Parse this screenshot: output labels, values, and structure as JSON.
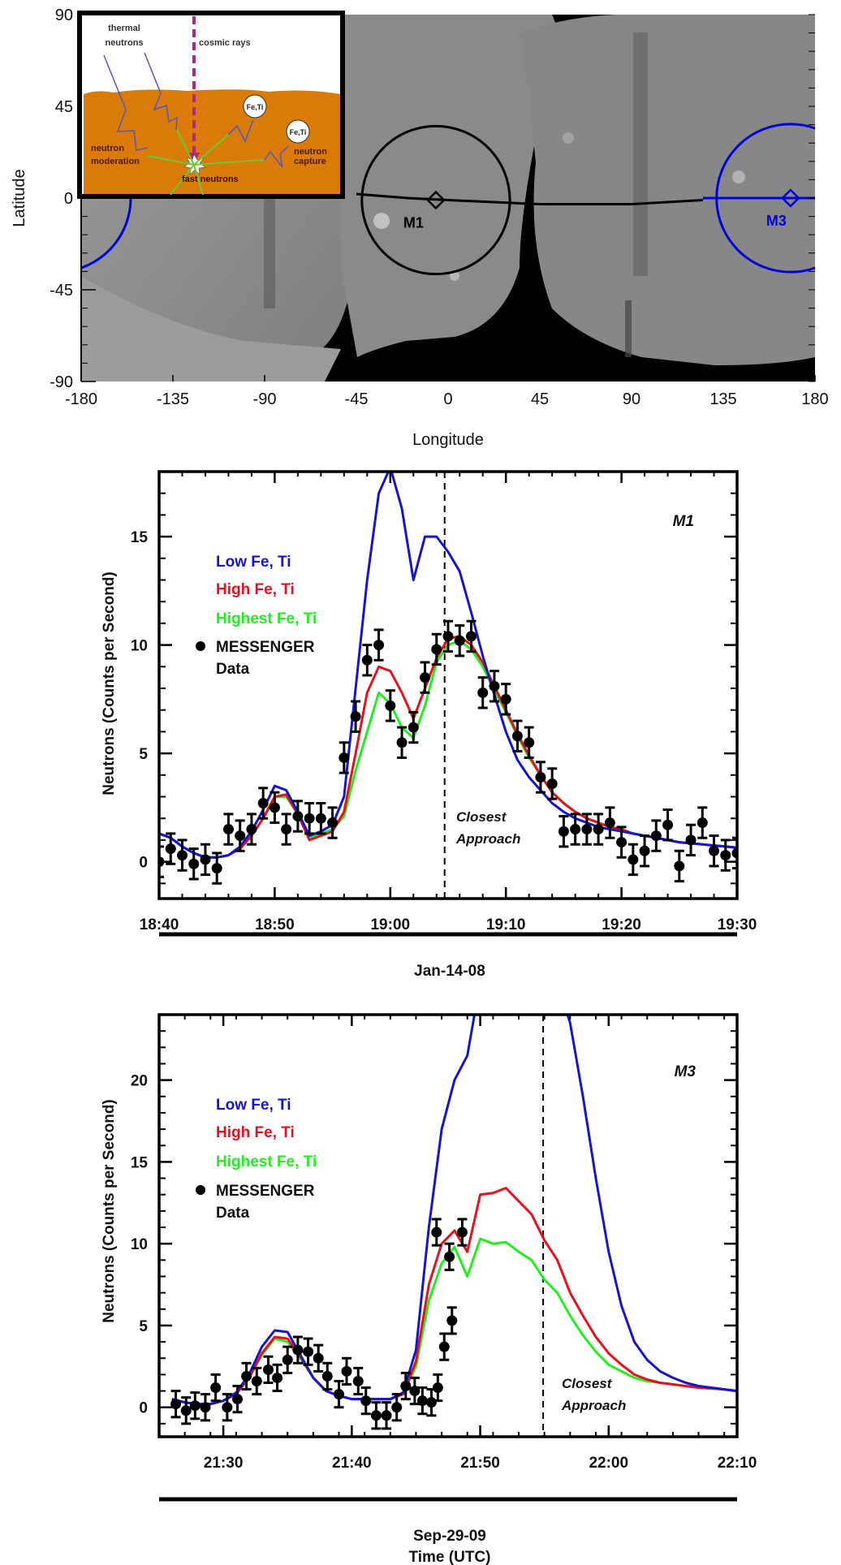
{
  "map": {
    "ylabel": "Latitude",
    "xlabel": "Longitude",
    "xticks": [
      "-180",
      "-135",
      "-90",
      "-45",
      "0",
      "45",
      "90",
      "135",
      "180"
    ],
    "xtick_values": [
      -180,
      -135,
      -90,
      -45,
      0,
      45,
      90,
      135,
      180
    ],
    "yticks": [
      "90",
      "45",
      "0",
      "-45",
      "-90"
    ],
    "ytick_values": [
      90,
      45,
      0,
      -45,
      -90
    ],
    "xlim": [
      -180,
      180
    ],
    "ylim": [
      -90,
      90
    ],
    "footprints": [
      {
        "label": "M1",
        "center_lon": -6,
        "center_lat": -1,
        "radius_deg": 33,
        "color": "#000000"
      },
      {
        "label": "M3",
        "center_lon": 168,
        "center_lat": 0,
        "radius_deg": 33,
        "color": "#0000dd"
      }
    ],
    "ground_track": [
      [
        -45,
        2
      ],
      [
        -20,
        0
      ],
      [
        0,
        -1
      ],
      [
        45,
        -3
      ],
      [
        90,
        -3
      ],
      [
        125,
        -1
      ]
    ],
    "m3_track": [
      [
        125,
        0
      ],
      [
        180,
        0
      ]
    ],
    "inset": {
      "labels": {
        "thermal": "thermal\nneutrons",
        "thermal_line1": "thermal",
        "thermal_line2": "neutrons",
        "cosmic": "cosmic rays",
        "moderation_line1": "neutron",
        "moderation_line2": "moderation",
        "capture_line1": "neutron",
        "capture_line2": "capture",
        "fast": "fast neutrons",
        "fe_ti": "Fe,Ti"
      },
      "colors": {
        "ground": "#d97b06",
        "cosmic": "#b5267f",
        "neutron_path": "#5555cc",
        "fast": "#66cc33"
      }
    }
  },
  "chart_data": [
    {
      "type": "line",
      "id": "M1",
      "title": "M1",
      "xlabel": "Jan-14-08",
      "ylabel": "Neutrons (Counts per Second)",
      "x_unit": "minutes after 18:40 UTC",
      "xlim": [
        0,
        50
      ],
      "ylim": [
        -1.7,
        18
      ],
      "xticks": [
        "18:40",
        "18:50",
        "19:00",
        "19:10",
        "19:20",
        "19:30"
      ],
      "xtick_values": [
        0,
        10,
        20,
        30,
        40,
        50
      ],
      "yticks": [
        "0",
        "5",
        "10",
        "15"
      ],
      "ytick_values": [
        0,
        5,
        10,
        15
      ],
      "closest_approach": {
        "x": 24.7,
        "label_line1": "Closest",
        "label_line2": "Approach"
      },
      "legend": [
        {
          "name": "Low Fe, Ti",
          "color": "#1515d0"
        },
        {
          "name": "High Fe, Ti",
          "color": "#e8101e"
        },
        {
          "name": "Highest Fe, Ti",
          "color": "#22ee22"
        },
        {
          "name": "MESSENGER",
          "name2": "Data",
          "color": "#000000",
          "marker": "dot"
        }
      ],
      "series": [
        {
          "name": "Highest Fe, Ti",
          "color": "#22ee22",
          "x": [
            0,
            1,
            2,
            3,
            4,
            5,
            6,
            7,
            8,
            9,
            10,
            11,
            12,
            13,
            14,
            15,
            16,
            17,
            18,
            19,
            20,
            21,
            22,
            23,
            24,
            25,
            26,
            27,
            28,
            29,
            30,
            31,
            32,
            33,
            34,
            35,
            36,
            37,
            38,
            39,
            40,
            41,
            42,
            43,
            44,
            45,
            46,
            47,
            48,
            49,
            50
          ],
          "y": [
            1.3,
            1.1,
            0.7,
            0.4,
            0.2,
            0.2,
            0.3,
            0.6,
            1.2,
            2.0,
            3.0,
            3.0,
            2.2,
            1.1,
            1.3,
            1.5,
            2.1,
            4.2,
            6.0,
            7.8,
            7.3,
            6.2,
            5.7,
            7.2,
            9.2,
            10.0,
            10.2,
            9.8,
            9.0,
            7.9,
            6.9,
            5.8,
            4.8,
            4.0,
            3.2,
            2.7,
            2.3,
            2.0,
            1.8,
            1.6,
            1.5,
            1.3,
            1.2,
            1.1,
            1.0,
            0.9,
            0.85,
            0.8,
            0.75,
            0.7,
            0.65
          ]
        },
        {
          "name": "High Fe, Ti",
          "color": "#e8101e",
          "x": [
            0,
            1,
            2,
            3,
            4,
            5,
            6,
            7,
            8,
            9,
            10,
            11,
            12,
            13,
            14,
            15,
            16,
            17,
            18,
            19,
            20,
            21,
            22,
            23,
            24,
            25,
            26,
            27,
            28,
            29,
            30,
            31,
            32,
            33,
            34,
            35,
            36,
            37,
            38,
            39,
            40,
            41,
            42,
            43,
            44,
            45,
            46,
            47,
            48,
            49,
            50
          ],
          "y": [
            1.3,
            1.1,
            0.7,
            0.4,
            0.2,
            0.2,
            0.3,
            0.6,
            1.2,
            2.0,
            3.0,
            3.1,
            2.2,
            1.0,
            1.2,
            1.4,
            2.3,
            5.0,
            7.8,
            9.0,
            8.8,
            7.8,
            6.6,
            8.0,
            9.4,
            10.3,
            10.4,
            10.0,
            9.2,
            8.1,
            7.0,
            5.9,
            4.9,
            4.0,
            3.2,
            2.7,
            2.3,
            2.0,
            1.8,
            1.6,
            1.5,
            1.3,
            1.2,
            1.1,
            1.0,
            0.9,
            0.85,
            0.8,
            0.75,
            0.7,
            0.65
          ]
        },
        {
          "name": "Low Fe, Ti",
          "color": "#1515d0",
          "x": [
            0,
            1,
            2,
            3,
            4,
            5,
            6,
            7,
            8,
            9,
            10,
            11,
            12,
            13,
            14,
            15,
            16,
            17,
            18,
            19,
            20,
            21,
            22,
            23,
            24,
            25,
            26,
            27,
            28,
            29,
            30,
            31,
            32,
            33,
            34,
            35,
            36,
            37,
            38,
            39,
            40,
            41,
            42,
            43,
            44,
            45,
            46,
            47,
            48,
            49,
            50
          ],
          "y": [
            1.3,
            1.1,
            0.7,
            0.4,
            0.2,
            0.2,
            0.3,
            0.7,
            1.4,
            2.4,
            3.5,
            3.3,
            2.3,
            1.2,
            1.4,
            1.7,
            3.0,
            8.0,
            13.0,
            17.0,
            18.2,
            16.3,
            13.0,
            15.0,
            15.0,
            14.3,
            13.4,
            11.5,
            9.5,
            7.7,
            6.0,
            4.7,
            3.9,
            3.3,
            2.7,
            2.3,
            2.0,
            1.8,
            1.6,
            1.5,
            1.4,
            1.3,
            1.2,
            1.1,
            1.0,
            0.9,
            0.85,
            0.8,
            0.75,
            0.7,
            0.65
          ]
        }
      ],
      "points": {
        "name": "MESSENGER Data",
        "x": [
          0,
          1,
          2,
          3,
          4,
          5,
          6,
          7,
          8,
          9,
          10,
          11,
          12,
          13,
          14,
          15,
          16,
          17,
          18,
          19,
          20,
          21,
          22,
          23,
          24,
          25,
          26,
          27,
          28,
          29,
          30,
          31,
          32,
          33,
          34,
          35,
          36,
          37,
          38,
          39,
          40,
          41,
          42,
          43,
          44,
          45,
          46,
          47,
          48,
          49,
          50
        ],
        "y": [
          0.0,
          0.6,
          0.3,
          -0.1,
          0.1,
          -0.3,
          1.5,
          1.2,
          1.5,
          2.7,
          2.5,
          1.5,
          2.1,
          2.0,
          2.0,
          1.8,
          4.8,
          6.7,
          9.3,
          10.0,
          7.2,
          5.5,
          6.2,
          8.5,
          9.8,
          10.4,
          10.2,
          10.4,
          7.8,
          8.1,
          7.5,
          5.8,
          5.5,
          3.9,
          3.6,
          1.4,
          1.5,
          1.5,
          1.5,
          1.8,
          0.9,
          0.1,
          0.5,
          1.2,
          1.7,
          -0.2,
          1.0,
          1.8,
          0.5,
          0.3,
          0.4
        ],
        "err": [
          0.7,
          0.7,
          0.7,
          0.7,
          0.7,
          0.7,
          0.7,
          0.7,
          0.7,
          0.7,
          0.7,
          0.7,
          0.7,
          0.7,
          0.7,
          0.7,
          0.7,
          0.7,
          0.7,
          0.7,
          0.7,
          0.7,
          0.7,
          0.7,
          0.7,
          0.7,
          0.7,
          0.7,
          0.7,
          0.7,
          0.7,
          0.7,
          0.7,
          0.7,
          0.7,
          0.7,
          0.7,
          0.7,
          0.7,
          0.7,
          0.7,
          0.7,
          0.7,
          0.7,
          0.7,
          0.7,
          0.7,
          0.7,
          0.7,
          0.7,
          0.7
        ]
      }
    },
    {
      "type": "line",
      "id": "M3",
      "title": "M3",
      "xlabel": "Sep-29-09",
      "xlabel2": "Time (UTC)",
      "ylabel": "Neutrons (Counts per Second)",
      "x_unit": "minutes after 21:25 UTC",
      "xlim": [
        0,
        45
      ],
      "ylim": [
        -1.8,
        24
      ],
      "xticks": [
        "21:30",
        "21:40",
        "21:50",
        "22:00",
        "22:10"
      ],
      "xtick_values": [
        5,
        15,
        25,
        35,
        45
      ],
      "yticks": [
        "0",
        "5",
        "10",
        "15",
        "20"
      ],
      "ytick_values": [
        0,
        5,
        10,
        15,
        20
      ],
      "closest_approach": {
        "x": 29.9,
        "label_line1": "Closest",
        "label_line2": "Approach"
      },
      "legend": [
        {
          "name": "Low Fe, Ti",
          "color": "#1515d0"
        },
        {
          "name": "High Fe, Ti",
          "color": "#e8101e"
        },
        {
          "name": "Highest Fe, Ti",
          "color": "#22ee22"
        },
        {
          "name": "MESSENGER",
          "name2": "Data",
          "color": "#000000",
          "marker": "dot"
        }
      ],
      "series": [
        {
          "name": "Highest Fe, Ti",
          "color": "#22ee22",
          "x": [
            1,
            2,
            3,
            4,
            5,
            6,
            7,
            8,
            9,
            10,
            11,
            12,
            13,
            14,
            15,
            16,
            17,
            18,
            19,
            20,
            21,
            22,
            23,
            24,
            25,
            26,
            27,
            28,
            29,
            30,
            31,
            32,
            33,
            34,
            35,
            36,
            37,
            38,
            39,
            40,
            41,
            42,
            43,
            44,
            45
          ],
          "y": [
            0.5,
            0.3,
            0.2,
            0.2,
            0.4,
            0.8,
            1.8,
            3.2,
            4.2,
            4.0,
            3.0,
            1.8,
            1.0,
            0.7,
            0.5,
            0.5,
            0.5,
            0.5,
            0.8,
            2.5,
            6.5,
            8.8,
            9.8,
            8.0,
            10.3,
            10.0,
            10.1,
            9.5,
            9.0,
            7.8,
            7.0,
            5.6,
            4.4,
            3.4,
            2.6,
            2.2,
            1.8,
            1.6,
            1.5,
            1.4,
            1.3,
            1.2,
            1.15,
            1.1,
            1.0
          ]
        },
        {
          "name": "High Fe, Ti",
          "color": "#e8101e",
          "x": [
            1,
            2,
            3,
            4,
            5,
            6,
            7,
            8,
            9,
            10,
            11,
            12,
            13,
            14,
            15,
            16,
            17,
            18,
            19,
            20,
            21,
            22,
            23,
            24,
            25,
            26,
            27,
            28,
            29,
            30,
            31,
            32,
            33,
            34,
            35,
            36,
            37,
            38,
            39,
            40,
            41,
            42,
            43,
            44,
            45
          ],
          "y": [
            0.5,
            0.3,
            0.2,
            0.2,
            0.4,
            0.8,
            1.8,
            3.3,
            4.3,
            4.2,
            3.1,
            1.8,
            1.0,
            0.7,
            0.5,
            0.5,
            0.5,
            0.5,
            0.8,
            2.8,
            7.5,
            10.0,
            10.8,
            9.5,
            13.0,
            13.1,
            13.4,
            12.6,
            11.8,
            10.2,
            9.0,
            7.0,
            5.6,
            4.3,
            3.3,
            2.6,
            2.0,
            1.7,
            1.5,
            1.4,
            1.3,
            1.2,
            1.15,
            1.1,
            1.0
          ]
        },
        {
          "name": "Low Fe, Ti",
          "color": "#1515d0",
          "x": [
            1,
            2,
            3,
            4,
            5,
            6,
            7,
            8,
            9,
            10,
            11,
            12,
            13,
            14,
            15,
            16,
            17,
            18,
            19,
            20,
            21,
            22,
            23,
            24,
            25,
            26,
            27,
            28,
            29,
            30,
            31,
            32,
            33,
            34,
            35,
            36,
            37,
            38,
            39,
            40,
            41,
            42,
            43,
            44,
            45
          ],
          "y": [
            0.5,
            0.3,
            0.2,
            0.2,
            0.4,
            0.9,
            2.0,
            3.7,
            4.7,
            4.6,
            3.2,
            1.8,
            1.0,
            0.7,
            0.5,
            0.5,
            0.5,
            0.5,
            0.9,
            3.5,
            11.0,
            17.0,
            20.0,
            21.5,
            26,
            30,
            32,
            32,
            31,
            29,
            26,
            23.5,
            19,
            14,
            9.5,
            6.2,
            4.0,
            2.9,
            2.2,
            1.8,
            1.5,
            1.3,
            1.2,
            1.1,
            1.0
          ]
        }
      ],
      "points": {
        "name": "MESSENGER Data",
        "x": [
          1.3,
          2.1,
          2.8,
          3.6,
          4.4,
          5.3,
          6.1,
          6.8,
          7.6,
          8.5,
          9.2,
          10.0,
          10.8,
          11.6,
          12.4,
          13.1,
          14.0,
          14.6,
          15.5,
          16.1,
          16.9,
          17.7,
          18.5,
          19.2,
          19.9,
          20.5,
          21.2,
          21.7,
          22.2,
          22.8
        ],
        "y": [
          0.2,
          -0.2,
          0.1,
          0.0,
          1.2,
          0.0,
          0.5,
          1.9,
          1.6,
          2.3,
          1.8,
          2.9,
          3.5,
          3.4,
          3.0,
          1.9,
          0.8,
          2.2,
          1.6,
          0.4,
          -0.5,
          -0.5,
          0.0,
          1.3,
          1.0,
          0.4,
          0.3,
          1.2,
          3.7,
          5.3
        ],
        "err": [
          0.8,
          0.8,
          0.8,
          0.8,
          0.8,
          0.8,
          0.8,
          0.8,
          0.8,
          0.8,
          0.8,
          0.8,
          0.8,
          0.8,
          0.8,
          0.8,
          0.8,
          0.8,
          0.8,
          0.8,
          0.8,
          0.8,
          0.8,
          0.8,
          0.8,
          0.8,
          0.8,
          0.8,
          0.8,
          0.8
        ],
        "x_extra": [
          21.6,
          22.6,
          23.6
        ],
        "y_extra": [
          10.7,
          9.2,
          10.7
        ]
      }
    }
  ]
}
